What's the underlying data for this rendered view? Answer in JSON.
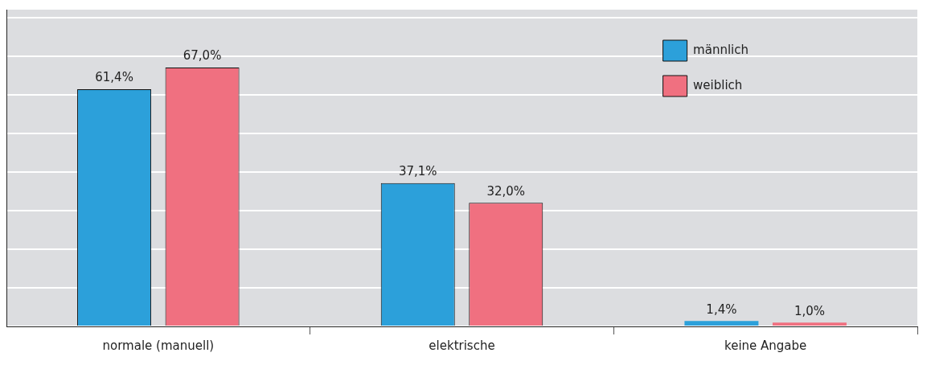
{
  "chart_data": {
    "type": "bar",
    "categories": [
      "normale (manuell)",
      "elektrische",
      "keine Angabe"
    ],
    "series": [
      {
        "name": "männlich",
        "color": "#2ca0da",
        "values": [
          61.4,
          37.1,
          1.4
        ],
        "value_labels": [
          "61,4%",
          "37,1%",
          "1,4%"
        ]
      },
      {
        "name": "weiblich",
        "color": "#f07080",
        "values": [
          67.0,
          32.0,
          1.0
        ],
        "value_labels": [
          "67,0%",
          "32,0%",
          "1,0%"
        ]
      }
    ],
    "ylim": [
      0,
      82
    ],
    "yticks": [
      {
        "value": 0,
        "label": null
      },
      {
        "value": 10,
        "label": null
      },
      {
        "value": 20,
        "label": null
      },
      {
        "value": 30,
        "label": null
      },
      {
        "value": 40,
        "label": null
      },
      {
        "value": 50,
        "label": null
      },
      {
        "value": 60,
        "label": null
      },
      {
        "value": 70,
        "label": null
      },
      {
        "value": 80,
        "label": null
      }
    ],
    "grid": "y",
    "legend": "top right"
  }
}
